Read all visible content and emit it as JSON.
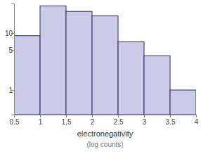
{
  "chart_data": {
    "type": "histogram",
    "x_label": "electronegativity",
    "annotations": [
      "(log counts)"
    ],
    "bins": [
      0.5,
      1,
      1.5,
      2,
      2.5,
      3,
      3.5,
      4
    ],
    "values": [
      9,
      30,
      24,
      20,
      7,
      4,
      1
    ],
    "color": "#cbcbe9",
    "log": "y",
    "xlim": [
      0.5,
      4
    ],
    "xticks": [
      0.5,
      1,
      1.5,
      2,
      2.5,
      3,
      3.5,
      4
    ],
    "ylim": [
      0.37,
      33
    ],
    "yticks": [
      1,
      5,
      10
    ]
  }
}
